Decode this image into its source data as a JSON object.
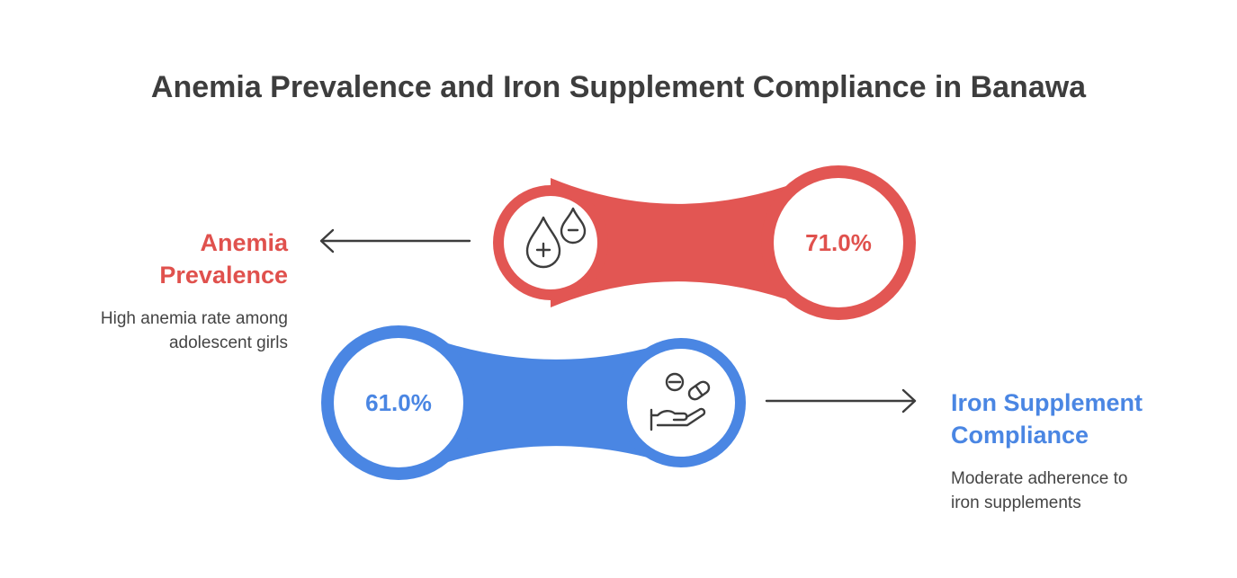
{
  "title": "Anemia Prevalence and Iron Supplement Compliance in Banawa",
  "items": [
    {
      "label_line1": "Anemia",
      "label_line2": "Prevalence",
      "desc_line1": "High anemia rate among",
      "desc_line2": "adolescent girls",
      "value_text": "71.0%",
      "value": 71.0,
      "icon": "blood-drops-plus-minus-icon",
      "color": "#e25653"
    },
    {
      "label_line1": "Iron Supplement",
      "label_line2": "Compliance",
      "desc_line1": "Moderate adherence to",
      "desc_line2": "iron supplements",
      "value_text": "61.0%",
      "value": 61.0,
      "icon": "hand-with-pills-icon",
      "color": "#4a86e3"
    }
  ]
}
